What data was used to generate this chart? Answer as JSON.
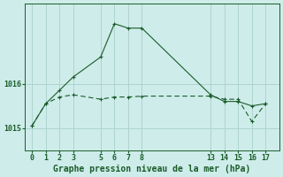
{
  "title": "Graphe pression niveau de la mer (hPa)",
  "background_color": "#ceecea",
  "grid_color": "#afd4d0",
  "line_color": "#1a5c2a",
  "x_ticks": [
    0,
    1,
    2,
    3,
    5,
    6,
    7,
    8,
    13,
    14,
    15,
    16,
    17
  ],
  "y_ticks": [
    1015,
    1016
  ],
  "ylim": [
    1014.5,
    1017.8
  ],
  "xlim": [
    -0.5,
    18.0
  ],
  "series1_x": [
    0,
    1,
    2,
    3,
    5,
    6,
    7,
    8,
    13,
    14,
    15,
    16,
    17
  ],
  "series1_y": [
    1015.05,
    1015.55,
    1015.85,
    1016.15,
    1016.6,
    1017.35,
    1017.25,
    1017.25,
    1015.75,
    1015.6,
    1015.6,
    1015.5,
    1015.55
  ],
  "series2_x": [
    0,
    1,
    2,
    3,
    5,
    6,
    7,
    8,
    13,
    14,
    15,
    16,
    17
  ],
  "series2_y": [
    1015.05,
    1015.55,
    1015.7,
    1015.75,
    1015.65,
    1015.7,
    1015.7,
    1015.72,
    1015.72,
    1015.65,
    1015.65,
    1015.15,
    1015.55
  ],
  "title_fontsize": 7.0,
  "tick_fontsize": 6.0
}
